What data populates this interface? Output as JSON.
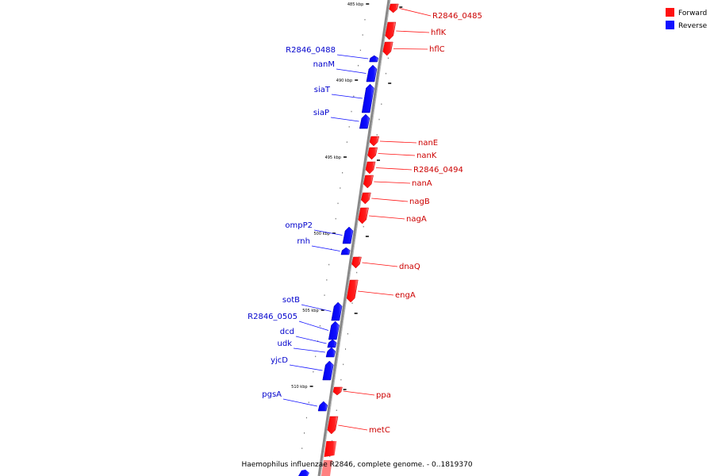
{
  "title": "Haemophilus influenzae R2846, complete genome. - 0..1819370",
  "legend": [
    {
      "label": "Forward",
      "color": "#ff1010"
    },
    {
      "label": "Reverse",
      "color": "#1010ff"
    }
  ],
  "colors": {
    "forward": "#ff1010",
    "forward_light": "#ff8080",
    "reverse": "#1010ff",
    "reverse_light": "#8080ff",
    "backbone": "#888888"
  },
  "scale_ticks": [
    "485 kbp",
    "490 kbp",
    "495 kbp",
    "500 kbp",
    "505 kbp",
    "510 kbp"
  ],
  "genes": {
    "forward": [
      "R2846_0485",
      "hflK",
      "hflC",
      "nanE",
      "nanK",
      "R2846_0494",
      "nanA",
      "nagB",
      "nagA",
      "dnaQ",
      "engA",
      "ppa",
      "metC"
    ],
    "reverse": [
      "R2846_0488",
      "nanM",
      "siaT",
      "siaP",
      "ompP2",
      "rnh",
      "sotB",
      "R2846_0505",
      "dcd",
      "udk",
      "yjcD",
      "pgsA"
    ]
  }
}
